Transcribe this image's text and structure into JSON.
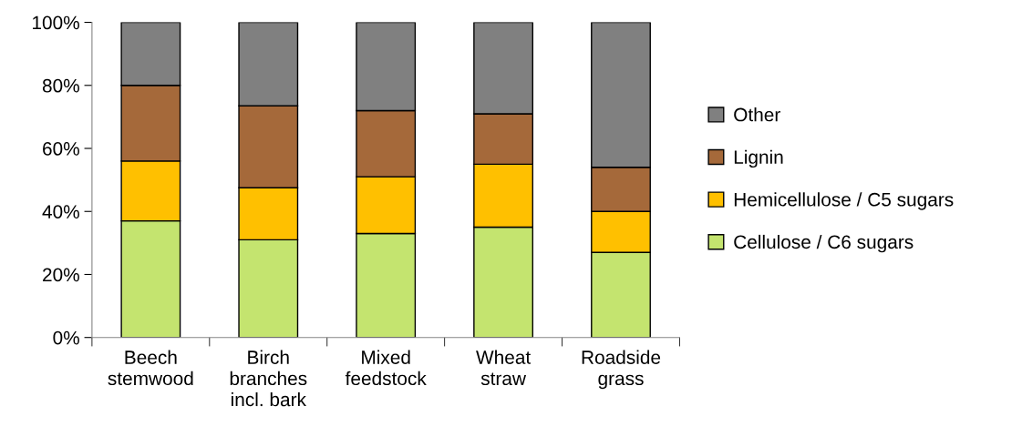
{
  "chart_data": {
    "type": "bar",
    "stacked": true,
    "categories": [
      "Beech\nstemwood",
      "Birch\nbranches\nincl. bark",
      "Mixed\nfeedstock",
      "Wheat\nstraw",
      "Roadside\ngrass"
    ],
    "series": [
      {
        "name": "Cellulose / C6 sugars",
        "color": "#c4e46f",
        "values": [
          37,
          31,
          33,
          35,
          27
        ]
      },
      {
        "name": "Hemicellulose / C5 sugars",
        "color": "#ffc000",
        "values": [
          19,
          16.5,
          18,
          20,
          13
        ]
      },
      {
        "name": "Lignin",
        "color": "#a5693a",
        "values": [
          24,
          26,
          21,
          16,
          14
        ]
      },
      {
        "name": "Other",
        "color": "#808080",
        "values": [
          20,
          26.5,
          28,
          29,
          46
        ]
      }
    ],
    "ylim": [
      0,
      100
    ],
    "yticks": [
      {
        "value": 0,
        "label": "0%"
      },
      {
        "value": 20,
        "label": "20%"
      },
      {
        "value": 40,
        "label": "40%"
      },
      {
        "value": 60,
        "label": "60%"
      },
      {
        "value": 80,
        "label": "80%"
      },
      {
        "value": 100,
        "label": "100%"
      }
    ],
    "grid": false,
    "legend": "right"
  }
}
